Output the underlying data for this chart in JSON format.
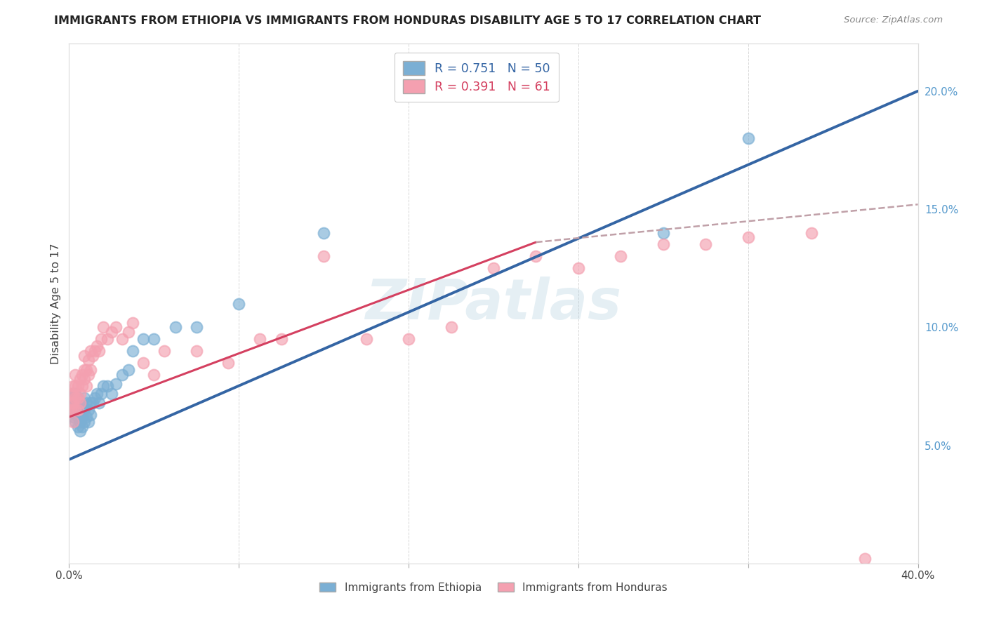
{
  "title": "IMMIGRANTS FROM ETHIOPIA VS IMMIGRANTS FROM HONDURAS DISABILITY AGE 5 TO 17 CORRELATION CHART",
  "source": "Source: ZipAtlas.com",
  "ylabel": "Disability Age 5 to 17",
  "xlim": [
    0.0,
    0.4
  ],
  "ylim": [
    0.0,
    0.22
  ],
  "x_ticks": [
    0.0,
    0.08,
    0.16,
    0.24,
    0.32,
    0.4
  ],
  "x_tick_labels": [
    "0.0%",
    "",
    "",
    "",
    "",
    "40.0%"
  ],
  "y_ticks_right": [
    0.05,
    0.1,
    0.15,
    0.2
  ],
  "y_tick_labels_right": [
    "5.0%",
    "10.0%",
    "15.0%",
    "20.0%"
  ],
  "color_ethiopia": "#7BAFD4",
  "color_ethiopia_line": "#3465A4",
  "color_honduras": "#F4A0B0",
  "color_honduras_line": "#D44060",
  "color_dashed": "#C0A0A8",
  "watermark_color": "#AACCDD",
  "ethiopia_x": [
    0.001,
    0.001,
    0.001,
    0.002,
    0.002,
    0.002,
    0.002,
    0.003,
    0.003,
    0.003,
    0.003,
    0.004,
    0.004,
    0.004,
    0.004,
    0.005,
    0.005,
    0.005,
    0.006,
    0.006,
    0.006,
    0.007,
    0.007,
    0.007,
    0.008,
    0.008,
    0.009,
    0.009,
    0.01,
    0.01,
    0.011,
    0.012,
    0.013,
    0.014,
    0.015,
    0.016,
    0.018,
    0.02,
    0.022,
    0.025,
    0.028,
    0.03,
    0.035,
    0.04,
    0.05,
    0.06,
    0.08,
    0.12,
    0.28,
    0.32
  ],
  "ethiopia_y": [
    0.065,
    0.068,
    0.07,
    0.062,
    0.065,
    0.068,
    0.072,
    0.06,
    0.064,
    0.068,
    0.072,
    0.058,
    0.062,
    0.065,
    0.07,
    0.056,
    0.06,
    0.065,
    0.058,
    0.062,
    0.067,
    0.06,
    0.065,
    0.07,
    0.062,
    0.068,
    0.06,
    0.065,
    0.063,
    0.068,
    0.068,
    0.07,
    0.072,
    0.068,
    0.072,
    0.075,
    0.075,
    0.072,
    0.076,
    0.08,
    0.082,
    0.09,
    0.095,
    0.095,
    0.1,
    0.1,
    0.11,
    0.14,
    0.14,
    0.18
  ],
  "honduras_x": [
    0.001,
    0.001,
    0.001,
    0.002,
    0.002,
    0.002,
    0.002,
    0.002,
    0.003,
    0.003,
    0.003,
    0.003,
    0.004,
    0.004,
    0.004,
    0.005,
    0.005,
    0.005,
    0.006,
    0.006,
    0.007,
    0.007,
    0.007,
    0.008,
    0.008,
    0.009,
    0.009,
    0.01,
    0.01,
    0.011,
    0.012,
    0.013,
    0.014,
    0.015,
    0.016,
    0.018,
    0.02,
    0.022,
    0.025,
    0.028,
    0.03,
    0.035,
    0.04,
    0.045,
    0.06,
    0.075,
    0.09,
    0.1,
    0.12,
    0.14,
    0.16,
    0.18,
    0.2,
    0.22,
    0.24,
    0.26,
    0.28,
    0.3,
    0.32,
    0.35,
    0.375
  ],
  "honduras_y": [
    0.065,
    0.068,
    0.072,
    0.06,
    0.065,
    0.068,
    0.072,
    0.075,
    0.065,
    0.07,
    0.075,
    0.08,
    0.065,
    0.07,
    0.075,
    0.068,
    0.072,
    0.078,
    0.075,
    0.08,
    0.078,
    0.082,
    0.088,
    0.075,
    0.082,
    0.08,
    0.086,
    0.082,
    0.09,
    0.088,
    0.09,
    0.092,
    0.09,
    0.095,
    0.1,
    0.095,
    0.098,
    0.1,
    0.095,
    0.098,
    0.102,
    0.085,
    0.08,
    0.09,
    0.09,
    0.085,
    0.095,
    0.095,
    0.13,
    0.095,
    0.095,
    0.1,
    0.125,
    0.13,
    0.125,
    0.13,
    0.135,
    0.135,
    0.138,
    0.14,
    0.002
  ],
  "eth_line_x0": 0.0,
  "eth_line_y0": 0.044,
  "eth_line_x1": 0.4,
  "eth_line_y1": 0.2,
  "hon_line_solid_x0": 0.0,
  "hon_line_solid_y0": 0.062,
  "hon_line_solid_x1": 0.22,
  "hon_line_solid_y1": 0.136,
  "hon_line_dash_x0": 0.22,
  "hon_line_dash_y0": 0.136,
  "hon_line_dash_x1": 0.4,
  "hon_line_dash_y1": 0.152
}
